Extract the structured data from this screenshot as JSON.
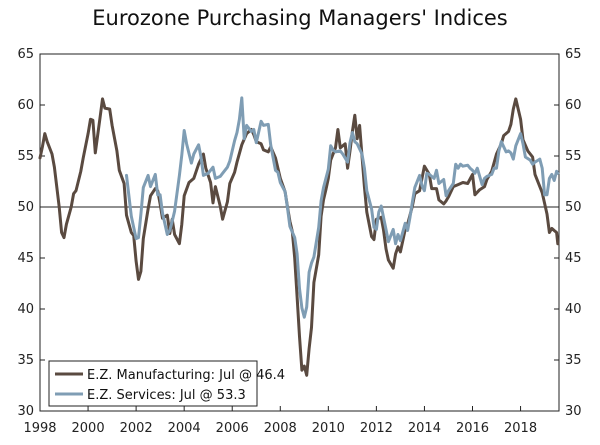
{
  "chart_data": {
    "type": "line",
    "title": "Eurozone Purchasing Managers' Indices",
    "xlabel": "",
    "ylabel": "",
    "xlim": [
      1998,
      2019.6
    ],
    "ylim": [
      30,
      65
    ],
    "x_ticks": [
      "1998",
      "2000",
      "2002",
      "2004",
      "2006",
      "2008",
      "2010",
      "2012",
      "2014",
      "2016",
      "2018"
    ],
    "x_tick_values": [
      1998,
      2000,
      2002,
      2004,
      2006,
      2008,
      2010,
      2012,
      2014,
      2016,
      2018
    ],
    "y_ticks": [
      30,
      35,
      40,
      45,
      50,
      55,
      60,
      65
    ],
    "reference_line": 50,
    "grid": false,
    "legend_position": "bottom-left",
    "series": [
      {
        "name": "E.Z. Manufacturing: Jul @ 46.4",
        "color": "#5a4a40",
        "points": [
          [
            1998.0,
            54.8
          ],
          [
            1998.1,
            55.9
          ],
          [
            1998.2,
            57.2
          ],
          [
            1998.3,
            56.4
          ],
          [
            1998.5,
            55.2
          ],
          [
            1998.6,
            53.9
          ],
          [
            1998.8,
            50.0
          ],
          [
            1998.9,
            47.5
          ],
          [
            1999.0,
            47.0
          ],
          [
            1999.1,
            48.3
          ],
          [
            1999.3,
            50.0
          ],
          [
            1999.4,
            51.3
          ],
          [
            1999.5,
            51.6
          ],
          [
            1999.7,
            53.5
          ],
          [
            1999.8,
            54.8
          ],
          [
            2000.0,
            57.2
          ],
          [
            2000.1,
            58.6
          ],
          [
            2000.2,
            58.5
          ],
          [
            2000.3,
            55.3
          ],
          [
            2000.5,
            58.8
          ],
          [
            2000.6,
            60.6
          ],
          [
            2000.7,
            59.7
          ],
          [
            2000.9,
            59.6
          ],
          [
            2001.0,
            58.0
          ],
          [
            2001.2,
            55.5
          ],
          [
            2001.3,
            53.6
          ],
          [
            2001.5,
            52.3
          ],
          [
            2001.6,
            49.2
          ],
          [
            2001.8,
            47.5
          ],
          [
            2001.9,
            47.2
          ],
          [
            2002.0,
            44.7
          ],
          [
            2002.1,
            42.9
          ],
          [
            2002.2,
            43.7
          ],
          [
            2002.3,
            46.9
          ],
          [
            2002.5,
            49.8
          ],
          [
            2002.6,
            51.1
          ],
          [
            2002.8,
            51.8
          ],
          [
            2002.9,
            51.6
          ],
          [
            2003.0,
            50.3
          ],
          [
            2003.1,
            48.9
          ],
          [
            2003.3,
            49.2
          ],
          [
            2003.4,
            47.4
          ],
          [
            2003.5,
            48.8
          ],
          [
            2003.6,
            47.3
          ],
          [
            2003.8,
            46.4
          ],
          [
            2003.9,
            48.3
          ],
          [
            2004.0,
            51.1
          ],
          [
            2004.2,
            52.4
          ],
          [
            2004.4,
            52.8
          ],
          [
            2004.6,
            54.2
          ],
          [
            2004.8,
            55.2
          ],
          [
            2004.9,
            53.8
          ],
          [
            2005.1,
            52.4
          ],
          [
            2005.2,
            50.4
          ],
          [
            2005.3,
            52.0
          ],
          [
            2005.5,
            50.1
          ],
          [
            2005.6,
            48.8
          ],
          [
            2005.8,
            50.5
          ],
          [
            2005.9,
            52.3
          ],
          [
            2006.1,
            53.4
          ],
          [
            2006.2,
            54.4
          ],
          [
            2006.4,
            56.1
          ],
          [
            2006.6,
            57.2
          ],
          [
            2006.8,
            57.6
          ],
          [
            2006.9,
            57.1
          ],
          [
            2007.0,
            56.4
          ],
          [
            2007.2,
            56.2
          ],
          [
            2007.3,
            55.6
          ],
          [
            2007.5,
            55.4
          ],
          [
            2007.6,
            55.9
          ],
          [
            2007.8,
            54.8
          ],
          [
            2007.9,
            53.8
          ],
          [
            2008.0,
            52.8
          ],
          [
            2008.2,
            51.5
          ],
          [
            2008.3,
            50.0
          ],
          [
            2008.4,
            48.6
          ],
          [
            2008.5,
            47.6
          ],
          [
            2008.6,
            45.0
          ],
          [
            2008.7,
            41.2
          ],
          [
            2008.8,
            37.3
          ],
          [
            2008.9,
            34.0
          ],
          [
            2009.0,
            34.4
          ],
          [
            2009.1,
            33.5
          ],
          [
            2009.2,
            36.1
          ],
          [
            2009.3,
            38.2
          ],
          [
            2009.4,
            42.6
          ],
          [
            2009.6,
            45.3
          ],
          [
            2009.7,
            49.1
          ],
          [
            2009.8,
            50.7
          ],
          [
            2009.9,
            51.7
          ],
          [
            2010.0,
            52.8
          ],
          [
            2010.1,
            54.6
          ],
          [
            2010.3,
            55.8
          ],
          [
            2010.4,
            57.6
          ],
          [
            2010.5,
            55.8
          ],
          [
            2010.7,
            56.2
          ],
          [
            2010.8,
            53.8
          ],
          [
            2010.9,
            55.5
          ],
          [
            2011.0,
            57.4
          ],
          [
            2011.1,
            59.0
          ],
          [
            2011.2,
            56.7
          ],
          [
            2011.3,
            58.0
          ],
          [
            2011.5,
            52.0
          ],
          [
            2011.6,
            49.5
          ],
          [
            2011.8,
            47.1
          ],
          [
            2011.9,
            46.8
          ],
          [
            2012.0,
            48.8
          ],
          [
            2012.2,
            49.0
          ],
          [
            2012.3,
            47.7
          ],
          [
            2012.4,
            45.9
          ],
          [
            2012.5,
            44.8
          ],
          [
            2012.7,
            44.0
          ],
          [
            2012.8,
            45.4
          ],
          [
            2012.9,
            46.1
          ],
          [
            2013.0,
            45.6
          ],
          [
            2013.2,
            47.8
          ],
          [
            2013.3,
            48.3
          ],
          [
            2013.5,
            50.1
          ],
          [
            2013.6,
            51.3
          ],
          [
            2013.8,
            51.6
          ],
          [
            2013.9,
            52.8
          ],
          [
            2014.0,
            54.0
          ],
          [
            2014.2,
            53.2
          ],
          [
            2014.3,
            51.8
          ],
          [
            2014.5,
            51.8
          ],
          [
            2014.6,
            50.7
          ],
          [
            2014.8,
            50.3
          ],
          [
            2014.9,
            50.6
          ],
          [
            2015.0,
            51.0
          ],
          [
            2015.2,
            52.0
          ],
          [
            2015.4,
            52.2
          ],
          [
            2015.6,
            52.4
          ],
          [
            2015.8,
            52.3
          ],
          [
            2016.0,
            53.2
          ],
          [
            2016.1,
            51.2
          ],
          [
            2016.3,
            51.7
          ],
          [
            2016.5,
            52.0
          ],
          [
            2016.6,
            52.7
          ],
          [
            2016.8,
            53.5
          ],
          [
            2017.0,
            55.2
          ],
          [
            2017.2,
            56.2
          ],
          [
            2017.3,
            57.0
          ],
          [
            2017.5,
            57.4
          ],
          [
            2017.6,
            58.1
          ],
          [
            2017.7,
            59.6
          ],
          [
            2017.8,
            60.6
          ],
          [
            2017.9,
            59.6
          ],
          [
            2018.0,
            58.6
          ],
          [
            2018.1,
            56.6
          ],
          [
            2018.3,
            55.5
          ],
          [
            2018.5,
            54.9
          ],
          [
            2018.6,
            53.2
          ],
          [
            2018.8,
            52.0
          ],
          [
            2018.9,
            51.4
          ],
          [
            2019.1,
            49.3
          ],
          [
            2019.2,
            47.5
          ],
          [
            2019.3,
            47.9
          ],
          [
            2019.4,
            47.7
          ],
          [
            2019.5,
            47.5
          ],
          [
            2019.55,
            46.4
          ]
        ]
      },
      {
        "name": "E.Z. Services: Jul @ 53.3",
        "color": "#7f9db4",
        "points": [
          [
            2001.6,
            53.1
          ],
          [
            2001.8,
            49.1
          ],
          [
            2001.9,
            48.0
          ],
          [
            2002.0,
            46.9
          ],
          [
            2002.1,
            47.0
          ],
          [
            2002.2,
            49.3
          ],
          [
            2002.3,
            51.9
          ],
          [
            2002.5,
            53.1
          ],
          [
            2002.6,
            52.0
          ],
          [
            2002.8,
            53.2
          ],
          [
            2002.9,
            51.2
          ],
          [
            2003.0,
            51.2
          ],
          [
            2003.1,
            49.4
          ],
          [
            2003.3,
            47.3
          ],
          [
            2003.4,
            47.7
          ],
          [
            2003.5,
            48.6
          ],
          [
            2003.6,
            49.6
          ],
          [
            2003.8,
            53.1
          ],
          [
            2003.9,
            55.1
          ],
          [
            2004.0,
            57.5
          ],
          [
            2004.1,
            56.2
          ],
          [
            2004.3,
            54.3
          ],
          [
            2004.4,
            55.2
          ],
          [
            2004.6,
            56.1
          ],
          [
            2004.7,
            54.9
          ],
          [
            2004.8,
            53.1
          ],
          [
            2005.0,
            53.3
          ],
          [
            2005.2,
            53.9
          ],
          [
            2005.3,
            52.8
          ],
          [
            2005.5,
            53.0
          ],
          [
            2005.6,
            53.3
          ],
          [
            2005.8,
            53.9
          ],
          [
            2005.9,
            54.5
          ],
          [
            2006.1,
            56.5
          ],
          [
            2006.2,
            57.3
          ],
          [
            2006.3,
            58.6
          ],
          [
            2006.4,
            60.7
          ],
          [
            2006.5,
            56.7
          ],
          [
            2006.6,
            58.0
          ],
          [
            2006.8,
            57.4
          ],
          [
            2006.9,
            57.6
          ],
          [
            2007.0,
            56.3
          ],
          [
            2007.2,
            58.4
          ],
          [
            2007.3,
            58.0
          ],
          [
            2007.5,
            58.1
          ],
          [
            2007.6,
            56.1
          ],
          [
            2007.8,
            53.6
          ],
          [
            2007.9,
            53.4
          ],
          [
            2008.0,
            52.4
          ],
          [
            2008.2,
            51.5
          ],
          [
            2008.3,
            49.9
          ],
          [
            2008.4,
            48.1
          ],
          [
            2008.6,
            47.0
          ],
          [
            2008.7,
            45.4
          ],
          [
            2008.8,
            42.0
          ],
          [
            2008.9,
            40.1
          ],
          [
            2009.0,
            39.2
          ],
          [
            2009.1,
            40.2
          ],
          [
            2009.2,
            43.6
          ],
          [
            2009.3,
            44.5
          ],
          [
            2009.4,
            45.1
          ],
          [
            2009.6,
            48.0
          ],
          [
            2009.7,
            50.6
          ],
          [
            2009.8,
            51.9
          ],
          [
            2010.0,
            53.7
          ],
          [
            2010.1,
            56.0
          ],
          [
            2010.2,
            55.6
          ],
          [
            2010.3,
            55.4
          ],
          [
            2010.5,
            55.5
          ],
          [
            2010.6,
            55.2
          ],
          [
            2010.8,
            54.4
          ],
          [
            2010.9,
            56.3
          ],
          [
            2011.0,
            57.3
          ],
          [
            2011.1,
            56.4
          ],
          [
            2011.2,
            56.2
          ],
          [
            2011.4,
            55.2
          ],
          [
            2011.5,
            53.8
          ],
          [
            2011.6,
            51.6
          ],
          [
            2011.8,
            49.8
          ],
          [
            2011.9,
            48.0
          ],
          [
            2012.0,
            47.8
          ],
          [
            2012.1,
            49.5
          ],
          [
            2012.2,
            50.1
          ],
          [
            2012.4,
            47.8
          ],
          [
            2012.5,
            46.6
          ],
          [
            2012.7,
            47.8
          ],
          [
            2012.8,
            46.4
          ],
          [
            2012.9,
            47.3
          ],
          [
            2013.0,
            46.7
          ],
          [
            2013.2,
            48.4
          ],
          [
            2013.3,
            47.7
          ],
          [
            2013.4,
            49.0
          ],
          [
            2013.5,
            50.5
          ],
          [
            2013.6,
            51.9
          ],
          [
            2013.8,
            53.1
          ],
          [
            2013.9,
            52.1
          ],
          [
            2014.0,
            51.6
          ],
          [
            2014.1,
            53.3
          ],
          [
            2014.2,
            53.2
          ],
          [
            2014.4,
            52.8
          ],
          [
            2014.5,
            53.6
          ],
          [
            2014.6,
            52.3
          ],
          [
            2014.8,
            52.7
          ],
          [
            2014.9,
            51.1
          ],
          [
            2015.0,
            51.6
          ],
          [
            2015.2,
            52.3
          ],
          [
            2015.3,
            54.2
          ],
          [
            2015.4,
            53.8
          ],
          [
            2015.5,
            54.2
          ],
          [
            2015.6,
            54.0
          ],
          [
            2015.8,
            54.1
          ],
          [
            2015.9,
            53.8
          ],
          [
            2016.0,
            53.6
          ],
          [
            2016.1,
            53.3
          ],
          [
            2016.2,
            53.8
          ],
          [
            2016.4,
            52.2
          ],
          [
            2016.5,
            52.8
          ],
          [
            2016.6,
            53.0
          ],
          [
            2016.8,
            53.2
          ],
          [
            2016.9,
            53.8
          ],
          [
            2017.0,
            53.8
          ],
          [
            2017.1,
            55.5
          ],
          [
            2017.2,
            56.4
          ],
          [
            2017.4,
            55.4
          ],
          [
            2017.5,
            55.5
          ],
          [
            2017.6,
            55.3
          ],
          [
            2017.7,
            54.7
          ],
          [
            2017.8,
            56.0
          ],
          [
            2017.9,
            56.6
          ],
          [
            2018.0,
            57.2
          ],
          [
            2018.1,
            56.2
          ],
          [
            2018.2,
            54.9
          ],
          [
            2018.4,
            54.6
          ],
          [
            2018.5,
            54.2
          ],
          [
            2018.6,
            54.4
          ],
          [
            2018.8,
            54.7
          ],
          [
            2018.9,
            53.8
          ],
          [
            2019.0,
            51.2
          ],
          [
            2019.1,
            51.2
          ],
          [
            2019.2,
            52.8
          ],
          [
            2019.3,
            53.2
          ],
          [
            2019.4,
            52.6
          ],
          [
            2019.5,
            53.5
          ],
          [
            2019.55,
            53.3
          ]
        ]
      }
    ]
  }
}
